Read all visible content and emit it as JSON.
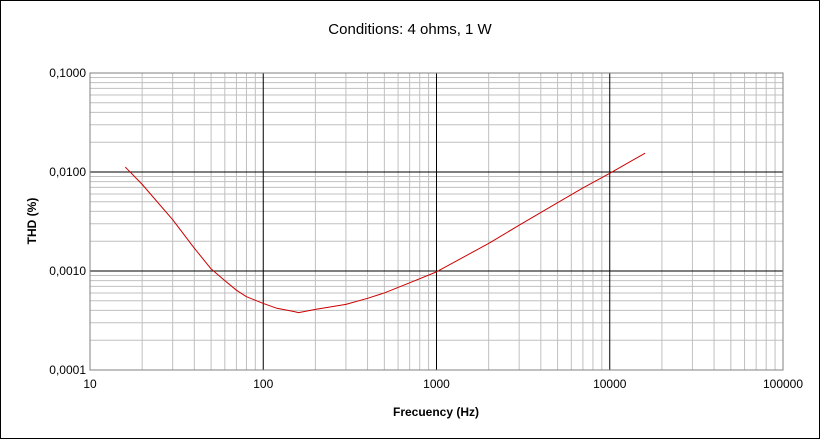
{
  "chart_data": {
    "type": "line",
    "title": "Conditions: 4 ohms, 1 W",
    "xlabel": "Frecuency (Hz)",
    "ylabel": "THD (%)",
    "x_scale": "log",
    "y_scale": "log",
    "xlim": [
      10,
      100000
    ],
    "ylim": [
      0.0001,
      0.1
    ],
    "x_ticks": [
      10,
      100,
      1000,
      10000,
      100000
    ],
    "x_tick_labels": [
      "10",
      "100",
      "1000",
      "10000",
      "100000"
    ],
    "y_ticks": [
      0.0001,
      0.001,
      0.01,
      0.1
    ],
    "y_tick_labels": [
      "0,0001",
      "0,0010",
      "0,0100",
      "0,1000"
    ],
    "grid": true,
    "minor_grid": true,
    "legend": false,
    "series": [
      {
        "color": "#cc0000",
        "x": [
          16,
          20,
          30,
          40,
          50,
          60,
          70,
          80,
          100,
          120,
          150,
          160,
          200,
          300,
          400,
          500,
          700,
          1000,
          2000,
          3000,
          5000,
          7000,
          10000,
          16000
        ],
        "y": [
          0.0112,
          0.0075,
          0.0033,
          0.0017,
          0.00105,
          0.0008,
          0.00064,
          0.00055,
          0.00047,
          0.00042,
          0.00039,
          0.00038,
          0.00041,
          0.00046,
          0.00053,
          0.0006,
          0.00076,
          0.00098,
          0.0019,
          0.0029,
          0.0049,
          0.0069,
          0.0097,
          0.0155
        ]
      }
    ]
  },
  "colors": {
    "background": "#ffffff",
    "major_grid": "#000000",
    "minor_grid": "#c0c0c0",
    "series": "#cc0000"
  }
}
